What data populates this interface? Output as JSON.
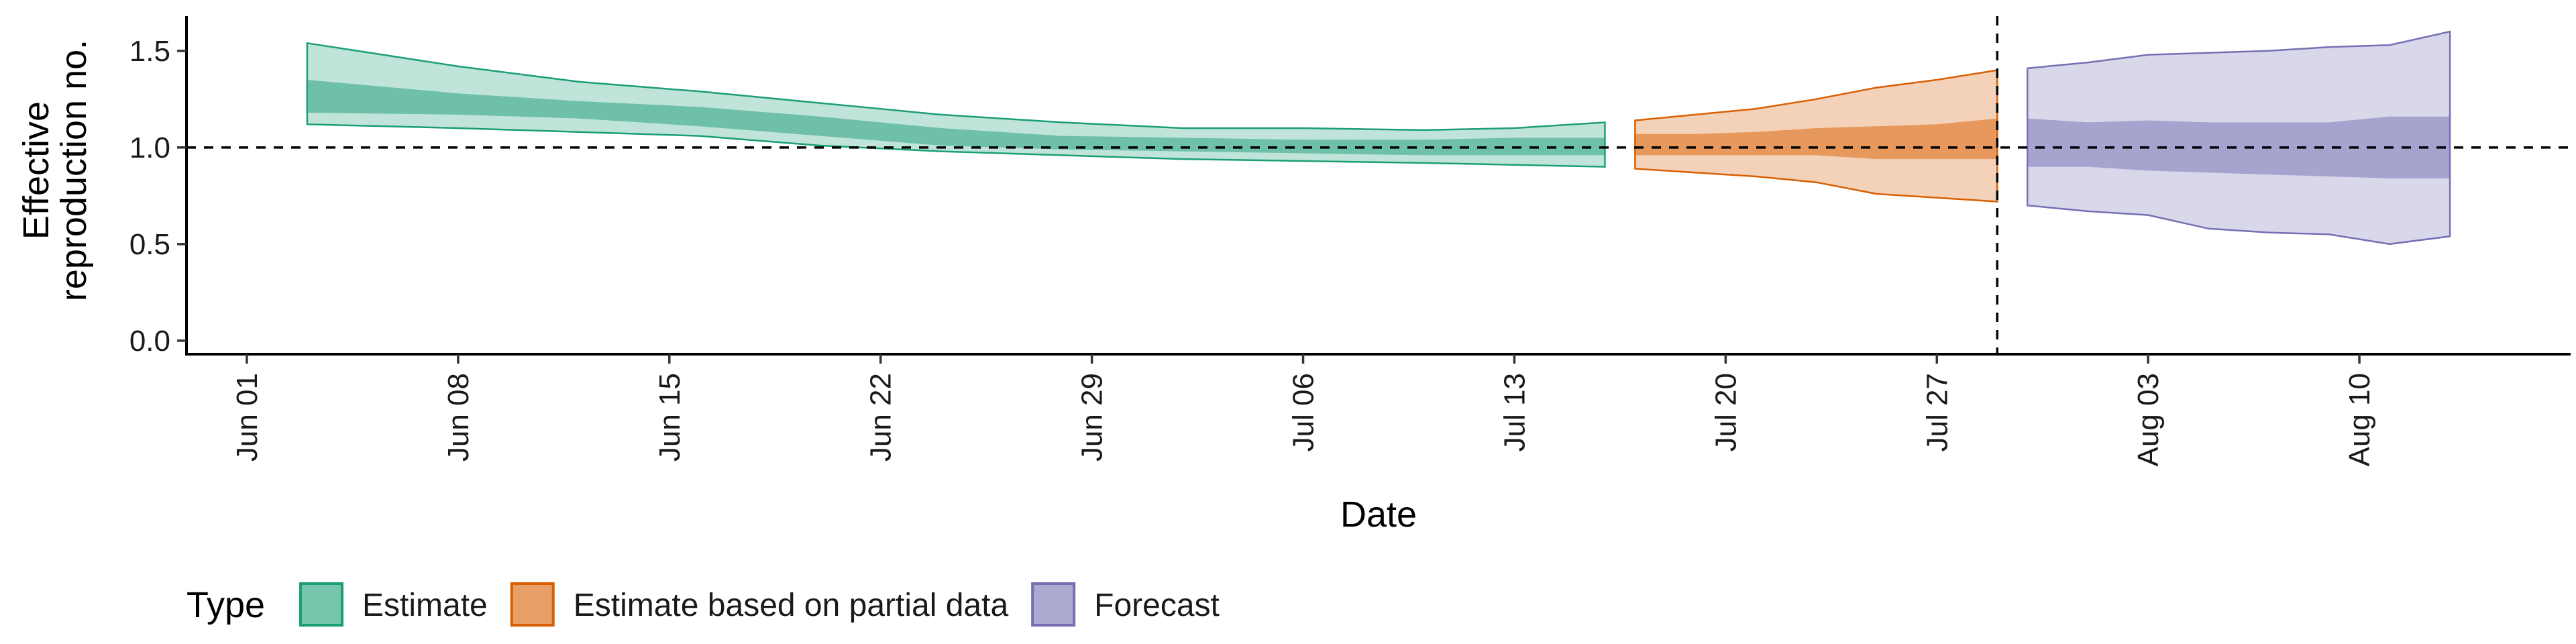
{
  "chart_data": {
    "type": "area",
    "xlabel": "Date",
    "ylabel_lines": [
      "Effective",
      "reproduction no."
    ],
    "x_ticks": [
      "Jun 01",
      "Jun 08",
      "Jun 15",
      "Jun 22",
      "Jun 29",
      "Jul 06",
      "Jul 13",
      "Jul 20",
      "Jul 27",
      "Aug 03",
      "Aug 10"
    ],
    "y_ticks": [
      "0.0",
      "0.5",
      "1.0",
      "1.5"
    ],
    "xlim": [
      "2020-05-30",
      "2020-08-17"
    ],
    "ylim": [
      -0.07,
      1.68
    ],
    "reference_hline": 1.0,
    "reference_vline": "2020-07-29",
    "legend_title": "Type",
    "legend_position": "bottom",
    "series": [
      {
        "name": "Estimate",
        "color": "#1b9e77",
        "points": [
          {
            "x": "2020-06-03",
            "lo90": 1.12,
            "lo50": 1.18,
            "hi50": 1.35,
            "hi90": 1.54
          },
          {
            "x": "2020-06-08",
            "lo90": 1.1,
            "lo50": 1.17,
            "hi50": 1.28,
            "hi90": 1.42
          },
          {
            "x": "2020-06-12",
            "lo90": 1.08,
            "lo50": 1.15,
            "hi50": 1.24,
            "hi90": 1.34
          },
          {
            "x": "2020-06-16",
            "lo90": 1.06,
            "lo50": 1.11,
            "hi50": 1.21,
            "hi90": 1.29
          },
          {
            "x": "2020-06-20",
            "lo90": 1.01,
            "lo50": 1.06,
            "hi50": 1.16,
            "hi90": 1.23
          },
          {
            "x": "2020-06-24",
            "lo90": 0.98,
            "lo50": 1.01,
            "hi50": 1.1,
            "hi90": 1.17
          },
          {
            "x": "2020-06-28",
            "lo90": 0.96,
            "lo50": 0.99,
            "hi50": 1.06,
            "hi90": 1.13
          },
          {
            "x": "2020-07-02",
            "lo90": 0.94,
            "lo50": 0.98,
            "hi50": 1.05,
            "hi90": 1.1
          },
          {
            "x": "2020-07-06",
            "lo90": 0.93,
            "lo50": 0.97,
            "hi50": 1.04,
            "hi90": 1.1
          },
          {
            "x": "2020-07-10",
            "lo90": 0.92,
            "lo50": 0.96,
            "hi50": 1.04,
            "hi90": 1.09
          },
          {
            "x": "2020-07-13",
            "lo90": 0.91,
            "lo50": 0.96,
            "hi50": 1.05,
            "hi90": 1.1
          },
          {
            "x": "2020-07-16",
            "lo90": 0.9,
            "lo50": 0.96,
            "hi50": 1.05,
            "hi90": 1.13
          }
        ]
      },
      {
        "name": "Estimate based on partial data",
        "color": "#d95f02",
        "points": [
          {
            "x": "2020-07-17",
            "lo90": 0.89,
            "lo50": 0.96,
            "hi50": 1.07,
            "hi90": 1.14
          },
          {
            "x": "2020-07-19",
            "lo90": 0.87,
            "lo50": 0.96,
            "hi50": 1.07,
            "hi90": 1.17
          },
          {
            "x": "2020-07-21",
            "lo90": 0.85,
            "lo50": 0.96,
            "hi50": 1.08,
            "hi90": 1.2
          },
          {
            "x": "2020-07-23",
            "lo90": 0.82,
            "lo50": 0.96,
            "hi50": 1.1,
            "hi90": 1.25
          },
          {
            "x": "2020-07-25",
            "lo90": 0.76,
            "lo50": 0.94,
            "hi50": 1.11,
            "hi90": 1.31
          },
          {
            "x": "2020-07-27",
            "lo90": 0.74,
            "lo50": 0.94,
            "hi50": 1.12,
            "hi90": 1.35
          },
          {
            "x": "2020-07-29",
            "lo90": 0.72,
            "lo50": 0.94,
            "hi50": 1.15,
            "hi90": 1.4
          }
        ]
      },
      {
        "name": "Forecast",
        "color": "#7570b3",
        "points": [
          {
            "x": "2020-07-30",
            "lo90": 0.7,
            "lo50": 0.9,
            "hi50": 1.15,
            "hi90": 1.41
          },
          {
            "x": "2020-08-01",
            "lo90": 0.67,
            "lo50": 0.9,
            "hi50": 1.13,
            "hi90": 1.44
          },
          {
            "x": "2020-08-03",
            "lo90": 0.65,
            "lo50": 0.88,
            "hi50": 1.14,
            "hi90": 1.48
          },
          {
            "x": "2020-08-05",
            "lo90": 0.58,
            "lo50": 0.87,
            "hi50": 1.13,
            "hi90": 1.49
          },
          {
            "x": "2020-08-07",
            "lo90": 0.56,
            "lo50": 0.86,
            "hi50": 1.13,
            "hi90": 1.5
          },
          {
            "x": "2020-08-09",
            "lo90": 0.55,
            "lo50": 0.85,
            "hi50": 1.13,
            "hi90": 1.52
          },
          {
            "x": "2020-08-11",
            "lo90": 0.5,
            "lo50": 0.84,
            "hi50": 1.16,
            "hi90": 1.53
          },
          {
            "x": "2020-08-13",
            "lo90": 0.54,
            "lo50": 0.84,
            "hi50": 1.16,
            "hi90": 1.6
          }
        ]
      }
    ]
  }
}
